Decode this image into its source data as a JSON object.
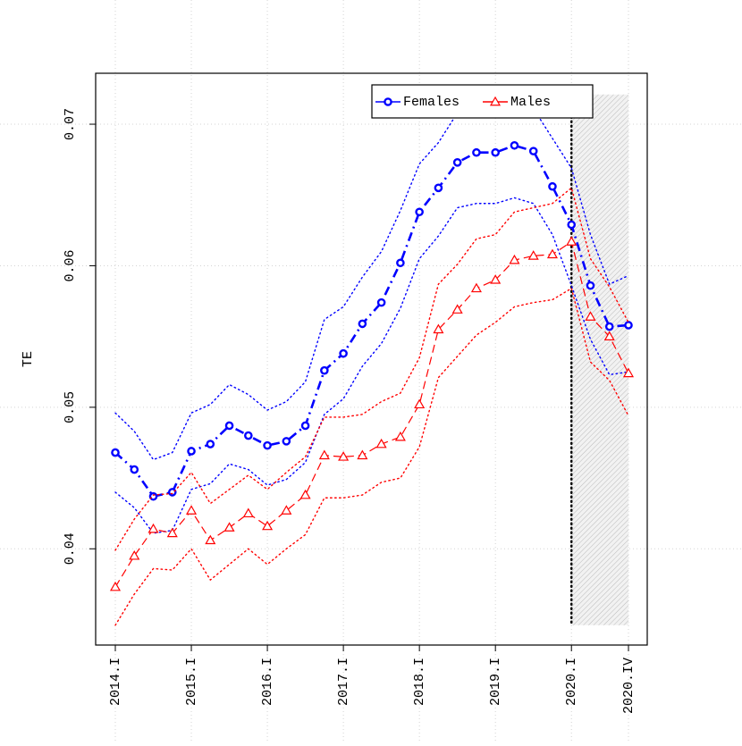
{
  "chart_data": {
    "type": "line",
    "y_label": "TE",
    "categories": [
      "2014.I",
      null,
      null,
      null,
      "2015.I",
      null,
      null,
      null,
      "2016.I",
      null,
      null,
      null,
      "2017.I",
      null,
      null,
      null,
      "2018.I",
      null,
      null,
      null,
      "2019.I",
      null,
      null,
      null,
      "2020.I",
      null,
      null,
      "2020.IV"
    ],
    "series": [
      {
        "name": "Females",
        "color": "#0000ff",
        "values": [
          0.0468,
          0.0456,
          0.0437,
          0.044,
          0.0469,
          0.0474,
          0.0487,
          0.048,
          0.0473,
          0.0476,
          0.0487,
          0.0526,
          0.0538,
          0.0559,
          0.0574,
          0.0602,
          0.0638,
          0.0655,
          0.0673,
          0.068,
          0.068,
          0.0685,
          0.0681,
          0.0656,
          0.0629,
          0.0586,
          0.0557,
          0.0558
        ],
        "upper": [
          0.0496,
          0.0483,
          0.0463,
          0.0468,
          0.0496,
          0.0502,
          0.0516,
          0.0509,
          0.0498,
          0.0504,
          0.0518,
          0.0562,
          0.0571,
          0.0592,
          0.061,
          0.0639,
          0.0672,
          0.0687,
          0.0708,
          0.0716,
          0.0718,
          0.0721,
          0.0711,
          0.069,
          0.0669,
          0.0622,
          0.0587,
          0.0593
        ],
        "lower": [
          0.044,
          0.0429,
          0.0411,
          0.0413,
          0.0442,
          0.0446,
          0.046,
          0.0456,
          0.0445,
          0.0449,
          0.0461,
          0.0495,
          0.0506,
          0.0529,
          0.0545,
          0.057,
          0.0605,
          0.0621,
          0.0641,
          0.0644,
          0.0644,
          0.0648,
          0.0644,
          0.0622,
          0.0586,
          0.0548,
          0.0523,
          0.0525
        ]
      },
      {
        "name": "Males",
        "color": "#ff0000",
        "values": [
          0.0373,
          0.0395,
          0.0414,
          0.0411,
          0.0427,
          0.0406,
          0.0415,
          0.0425,
          0.0416,
          0.0427,
          0.0438,
          0.0466,
          0.0465,
          0.0466,
          0.0474,
          0.0479,
          0.0502,
          0.0555,
          0.0569,
          0.0584,
          0.059,
          0.0604,
          0.0607,
          0.0608,
          0.0617,
          0.0564,
          0.055,
          0.0524
        ],
        "upper": [
          0.0399,
          0.0421,
          0.0438,
          0.0439,
          0.0454,
          0.0432,
          0.0442,
          0.0452,
          0.0442,
          0.0454,
          0.0465,
          0.0493,
          0.0493,
          0.0495,
          0.0504,
          0.051,
          0.0535,
          0.0587,
          0.0601,
          0.0619,
          0.0622,
          0.0638,
          0.0641,
          0.0644,
          0.0655,
          0.0605,
          0.0585,
          0.056
        ],
        "lower": [
          0.0346,
          0.0368,
          0.0386,
          0.0385,
          0.04,
          0.0378,
          0.0389,
          0.04,
          0.0389,
          0.04,
          0.041,
          0.0436,
          0.0436,
          0.0438,
          0.0447,
          0.045,
          0.0472,
          0.0521,
          0.0536,
          0.0551,
          0.056,
          0.0571,
          0.0574,
          0.0576,
          0.0584,
          0.0532,
          0.0519,
          0.0494
        ]
      }
    ],
    "ylim": [
      0.0332,
      0.0736
    ],
    "yticks": [
      0.04,
      0.05,
      0.06,
      0.07
    ],
    "grid": true
  }
}
